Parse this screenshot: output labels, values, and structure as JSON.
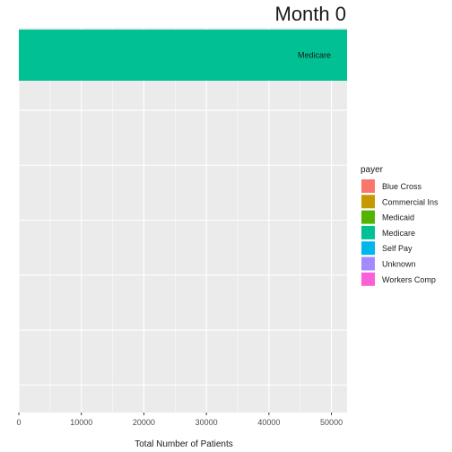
{
  "chart_data": {
    "type": "bar",
    "orientation": "horizontal",
    "title": "Month 0",
    "xlabel": "Total Number of Patients",
    "ylabel": "",
    "xlim": [
      0,
      52500
    ],
    "x_ticks": [
      0,
      10000,
      20000,
      30000,
      40000,
      50000
    ],
    "x_tick_labels": [
      "0",
      "10000",
      "20000",
      "30000",
      "40000",
      "50000"
    ],
    "grid": true,
    "legend_position": "right",
    "legend_title": "payer",
    "categories": [
      "Medicare"
    ],
    "values": [
      52500
    ],
    "bar_labels": [
      "Medicare"
    ],
    "series": [
      {
        "name": "Blue Cross",
        "color": "#F8766D"
      },
      {
        "name": "Commercial Ins",
        "color": "#C49A00"
      },
      {
        "name": "Medicaid",
        "color": "#53B400"
      },
      {
        "name": "Medicare",
        "color": "#00C094"
      },
      {
        "name": "Self Pay",
        "color": "#00B6EB"
      },
      {
        "name": "Unknown",
        "color": "#A58AFF"
      },
      {
        "name": "Workers Comp",
        "color": "#FB61D7"
      }
    ],
    "bar_color": "#00C094",
    "panel_color": "#EBEBEB",
    "legend_labels_visible": [
      "Blue Cross",
      "Commercial Ins",
      "Medicaid",
      "Medicare",
      "Self Pay",
      "Unknown",
      "Workers Comp"
    ]
  }
}
